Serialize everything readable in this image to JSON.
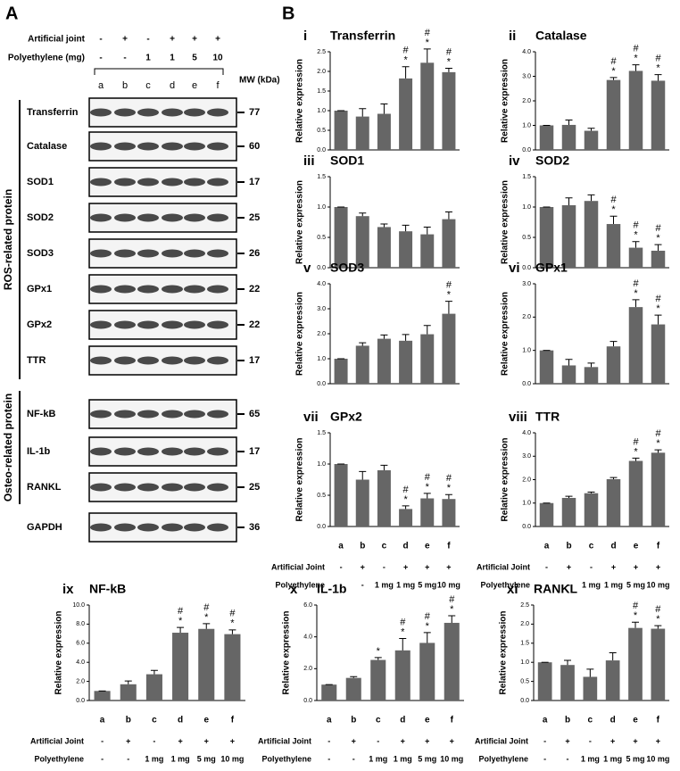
{
  "figure": {
    "label_b": "B"
  },
  "blot": {
    "label": "A",
    "mw_header": "MW (kDa)",
    "conditions": [
      {
        "name": "Artificial joint",
        "values": [
          "-",
          "+",
          "-",
          "+",
          "+",
          "+"
        ]
      },
      {
        "name": "Polyethylene (mg)",
        "values": [
          "-",
          "-",
          "1",
          "1",
          "5",
          "10"
        ]
      }
    ],
    "lanes": [
      "a",
      "b",
      "c",
      "d",
      "e",
      "f"
    ],
    "groups": [
      {
        "name": "ROS-related protein"
      },
      {
        "name": "Osteo-related protein"
      }
    ],
    "rows": [
      {
        "name": "Transferrin",
        "mw": 77
      },
      {
        "name": "Catalase",
        "mw": 60
      },
      {
        "name": "SOD1",
        "mw": 17
      },
      {
        "name": "SOD2",
        "mw": 25
      },
      {
        "name": "SOD3",
        "mw": 26
      },
      {
        "name": "GPx1",
        "mw": 22
      },
      {
        "name": "GPx2",
        "mw": 22
      },
      {
        "name": "TTR",
        "mw": 17
      },
      {
        "name": "NF-kB",
        "mw": 65
      },
      {
        "name": "IL-1b",
        "mw": 17
      },
      {
        "name": "RANKL",
        "mw": 25
      },
      {
        "name": "GAPDH",
        "mw": 36
      }
    ]
  },
  "chart_data": [
    {
      "type": "bar",
      "label": "i",
      "title": "Transferrin",
      "y_label": "Relative expression",
      "color": "#666666",
      "ylim": [
        0,
        2.5
      ],
      "yticks": [
        {
          "value": 0,
          "label": "0.0"
        },
        0.5,
        {
          "value": 1,
          "label": "1.0"
        },
        1.5,
        {
          "value": 2,
          "label": "2.0"
        },
        2.5
      ],
      "values": [
        1.0,
        0.85,
        0.92,
        1.82,
        2.22,
        1.98
      ],
      "error": [
        0,
        0.2,
        0.25,
        0.3,
        0.35,
        0.1
      ],
      "significance": [
        null,
        null,
        null,
        [
          "*",
          "#"
        ],
        [
          "*",
          "#"
        ],
        [
          "*",
          "#"
        ]
      ]
    },
    {
      "type": "bar",
      "label": "ii",
      "title": "Catalase",
      "y_label": "Relative expression",
      "color": "#666666",
      "ylim": [
        0,
        4
      ],
      "yticks": [
        {
          "value": 0,
          "label": "0.0"
        },
        {
          "value": 1,
          "label": "1.0"
        },
        {
          "value": 2,
          "label": "2.0"
        },
        {
          "value": 3,
          "label": "3.0"
        },
        {
          "value": 4,
          "label": "4.0"
        }
      ],
      "values": [
        1.0,
        1.02,
        0.78,
        2.85,
        3.22,
        2.82
      ],
      "error": [
        0,
        0.2,
        0.1,
        0.1,
        0.25,
        0.25
      ],
      "significance": [
        null,
        null,
        null,
        [
          "*",
          "#"
        ],
        [
          "*",
          "#"
        ],
        [
          "*",
          "#"
        ]
      ]
    },
    {
      "type": "bar",
      "label": "iii",
      "title": "SOD1",
      "y_label": "Relative expression",
      "color": "#666666",
      "ylim": [
        0,
        1.5
      ],
      "yticks": [
        {
          "value": 0,
          "label": "0.0"
        },
        0.5,
        {
          "value": 1,
          "label": "1.0"
        },
        1.5
      ],
      "values": [
        1.0,
        0.85,
        0.67,
        0.6,
        0.55,
        0.8
      ],
      "error": [
        0,
        0.05,
        0.05,
        0.1,
        0.12,
        0.12
      ]
    },
    {
      "type": "bar",
      "label": "iv",
      "title": "SOD2",
      "y_label": "Relative expression",
      "color": "#666666",
      "ylim": [
        0,
        1.5
      ],
      "yticks": [
        {
          "value": 0,
          "label": "0.0"
        },
        0.5,
        {
          "value": 1,
          "label": "1.0"
        },
        1.5
      ],
      "values": [
        1.0,
        1.03,
        1.1,
        0.72,
        0.33,
        0.28
      ],
      "error": [
        0,
        0.12,
        0.1,
        0.13,
        0.1,
        0.1
      ],
      "significance": [
        null,
        null,
        null,
        [
          "*",
          "#"
        ],
        [
          "*",
          "#"
        ],
        [
          "*",
          "#"
        ]
      ]
    },
    {
      "type": "bar",
      "label": "v",
      "title": "SOD3",
      "y_label": "Relative expression",
      "color": "#666666",
      "ylim": [
        0,
        4
      ],
      "yticks": [
        {
          "value": 0,
          "label": "0.0"
        },
        {
          "value": 1,
          "label": "1.0"
        },
        {
          "value": 2,
          "label": "2.0"
        },
        {
          "value": 3,
          "label": "3.0"
        },
        {
          "value": 4,
          "label": "4.0"
        }
      ],
      "values": [
        1.0,
        1.52,
        1.8,
        1.72,
        1.98,
        2.8
      ],
      "error": [
        0,
        0.12,
        0.15,
        0.25,
        0.35,
        0.5
      ],
      "significance": [
        null,
        null,
        null,
        null,
        null,
        [
          "*",
          "#"
        ]
      ]
    },
    {
      "type": "bar",
      "label": "vi",
      "title": "GPx1",
      "y_label": "Relative expression",
      "color": "#666666",
      "ylim": [
        0,
        3
      ],
      "yticks": [
        {
          "value": 0,
          "label": "0.0"
        },
        {
          "value": 1,
          "label": "1.0"
        },
        {
          "value": 2,
          "label": "2.0"
        },
        {
          "value": 3,
          "label": "3.0"
        }
      ],
      "values": [
        1.0,
        0.55,
        0.5,
        1.12,
        2.3,
        1.78
      ],
      "error": [
        0,
        0.18,
        0.12,
        0.15,
        0.22,
        0.28
      ],
      "significance": [
        null,
        null,
        null,
        null,
        [
          "*",
          "#"
        ],
        [
          "*",
          "#"
        ]
      ]
    },
    {
      "type": "bar",
      "label": "vii",
      "title": "GPx2",
      "y_label": "Relative expression",
      "color": "#666666",
      "ylim": [
        0,
        1.5
      ],
      "yticks": [
        {
          "value": 0,
          "label": "0.0"
        },
        0.5,
        {
          "value": 1,
          "label": "1.0"
        },
        1.5
      ],
      "categories": [
        "a",
        "b",
        "c",
        "d",
        "e",
        "f"
      ],
      "values": [
        1.0,
        0.75,
        0.9,
        0.28,
        0.45,
        0.44
      ],
      "error": [
        0,
        0.13,
        0.08,
        0.05,
        0.08,
        0.07
      ],
      "significance": [
        null,
        null,
        null,
        [
          "*",
          "#"
        ],
        [
          "*",
          "#"
        ],
        [
          "*",
          "#"
        ]
      ],
      "conditions": [
        {
          "name": "Artificial Joint",
          "values": [
            "-",
            "+",
            "-",
            "+",
            "+",
            "+"
          ]
        },
        {
          "name": "Polyethylene",
          "values": [
            "-",
            "-",
            "1 mg",
            "1 mg",
            "5 mg",
            "10 mg"
          ]
        }
      ]
    },
    {
      "type": "bar",
      "label": "viii",
      "title": "TTR",
      "y_label": "Relative expression",
      "color": "#666666",
      "ylim": [
        0,
        4
      ],
      "yticks": [
        {
          "value": 0,
          "label": "0.0"
        },
        {
          "value": 1,
          "label": "1.0"
        },
        {
          "value": 2,
          "label": "2.0"
        },
        {
          "value": 3,
          "label": "3.0"
        },
        {
          "value": 4,
          "label": "4.0"
        }
      ],
      "categories": [
        "a",
        "b",
        "c",
        "d",
        "e",
        "f"
      ],
      "values": [
        1.0,
        1.22,
        1.42,
        2.02,
        2.8,
        3.15
      ],
      "error": [
        0,
        0.07,
        0.05,
        0.07,
        0.12,
        0.12
      ],
      "significance": [
        null,
        null,
        null,
        null,
        [
          "*",
          "#"
        ],
        [
          "*",
          "#"
        ]
      ],
      "conditions": [
        {
          "name": "Artificial Joint",
          "values": [
            "-",
            "+",
            "-",
            "+",
            "+",
            "+"
          ]
        },
        {
          "name": "Polyethylene",
          "values": [
            "-",
            "-",
            "1 mg",
            "1 mg",
            "5 mg",
            "10 mg"
          ]
        }
      ]
    },
    {
      "type": "bar",
      "label": "ix",
      "title": "NF-kB",
      "y_label": "Relative expression",
      "color": "#666666",
      "ylim": [
        0,
        10
      ],
      "yticks": [
        {
          "value": 0,
          "label": "0.0"
        },
        {
          "value": 2,
          "label": "2.0"
        },
        {
          "value": 4,
          "label": "4.0"
        },
        {
          "value": 6,
          "label": "6.0"
        },
        {
          "value": 8,
          "label": "8.0"
        },
        {
          "value": 10,
          "label": "10.0"
        }
      ],
      "categories": [
        "a",
        "b",
        "c",
        "d",
        "e",
        "f"
      ],
      "values": [
        1.0,
        1.7,
        2.75,
        7.1,
        7.5,
        6.95
      ],
      "error": [
        0,
        0.35,
        0.4,
        0.55,
        0.55,
        0.45
      ],
      "significance": [
        null,
        null,
        null,
        [
          "*",
          "#"
        ],
        [
          "*",
          "#"
        ],
        [
          "*",
          "#"
        ]
      ],
      "conditions": [
        {
          "name": "Artificial Joint",
          "values": [
            "-",
            "+",
            "-",
            "+",
            "+",
            "+"
          ]
        },
        {
          "name": "Polyethylene",
          "values": [
            "-",
            "-",
            "1 mg",
            "1 mg",
            "5 mg",
            "10 mg"
          ]
        }
      ]
    },
    {
      "type": "bar",
      "label": "x",
      "title": "IL-1b",
      "y_label": "Relative expression",
      "color": "#666666",
      "ylim": [
        0,
        6
      ],
      "yticks": [
        {
          "value": 0,
          "label": "0.0"
        },
        {
          "value": 2,
          "label": "2.0"
        },
        {
          "value": 4,
          "label": "4.0"
        },
        {
          "value": 6,
          "label": "6.0"
        }
      ],
      "categories": [
        "a",
        "b",
        "c",
        "d",
        "e",
        "f"
      ],
      "values": [
        1.0,
        1.42,
        2.55,
        3.15,
        3.62,
        4.88
      ],
      "error": [
        0,
        0.08,
        0.15,
        0.75,
        0.65,
        0.45
      ],
      "significance": [
        null,
        null,
        [
          "*"
        ],
        [
          "*",
          "#"
        ],
        [
          "*",
          "#"
        ],
        [
          "*",
          "#"
        ]
      ],
      "conditions": [
        {
          "name": "Artificial Joint",
          "values": [
            "-",
            "+",
            "-",
            "+",
            "+",
            "+"
          ]
        },
        {
          "name": "Polyethylene",
          "values": [
            "-",
            "-",
            "1 mg",
            "1 mg",
            "5 mg",
            "10 mg"
          ]
        }
      ]
    },
    {
      "type": "bar",
      "label": "xi",
      "title": "RANKL",
      "y_label": "Relative expression",
      "color": "#666666",
      "ylim": [
        0,
        2.5
      ],
      "yticks": [
        {
          "value": 0,
          "label": "0.0"
        },
        0.5,
        {
          "value": 1,
          "label": "1.0"
        },
        1.5,
        {
          "value": 2,
          "label": "2.0"
        },
        2.5
      ],
      "categories": [
        "a",
        "b",
        "c",
        "d",
        "e",
        "f"
      ],
      "values": [
        1.0,
        0.93,
        0.62,
        1.05,
        1.9,
        1.88
      ],
      "error": [
        0,
        0.12,
        0.2,
        0.2,
        0.15,
        0.08
      ],
      "significance": [
        null,
        null,
        null,
        null,
        [
          "*",
          "#"
        ],
        [
          "*",
          "#"
        ]
      ],
      "conditions": [
        {
          "name": "Artificial Joint",
          "values": [
            "-",
            "+",
            "-",
            "+",
            "+",
            "+"
          ]
        },
        {
          "name": "Polyethylene",
          "values": [
            "-",
            "-",
            "1 mg",
            "1 mg",
            "5 mg",
            "10 mg"
          ]
        }
      ]
    }
  ]
}
